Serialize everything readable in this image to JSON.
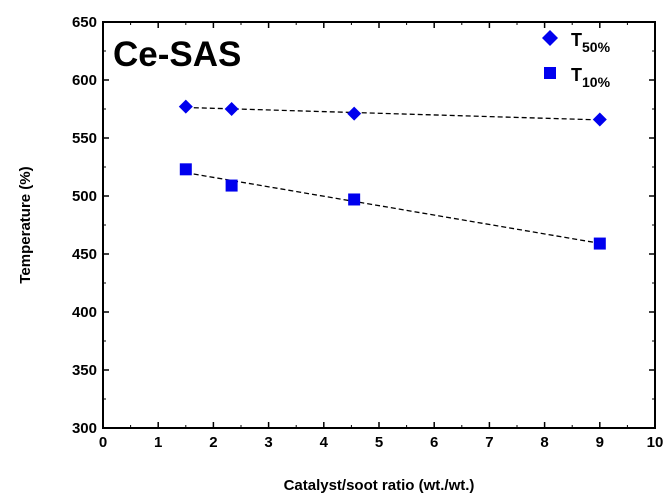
{
  "chart_data": {
    "type": "scatter",
    "title": "",
    "annotation": "Ce-SAS",
    "xlabel": "Catalyst/soot ratio (wt./wt.)",
    "ylabel": "Temperature (%)",
    "xlim": [
      0,
      10
    ],
    "ylim": [
      300,
      650
    ],
    "x_ticks": [
      "0",
      "1",
      "2",
      "3",
      "4",
      "5",
      "6",
      "7",
      "8",
      "9",
      "10"
    ],
    "y_ticks": [
      "300",
      "350",
      "400",
      "450",
      "500",
      "550",
      "600",
      "650"
    ],
    "grid": false,
    "legend_position": "top-right",
    "series": [
      {
        "name": "T50%",
        "legend_main": "T",
        "legend_sub": "50%",
        "marker": "diamond",
        "color": "#0000ee",
        "trendline": "dashed",
        "x": [
          1.5,
          2.33,
          4.55,
          9.0
        ],
        "y": [
          577,
          575,
          571,
          566
        ]
      },
      {
        "name": "T10%",
        "legend_main": "T",
        "legend_sub": "10%",
        "marker": "square",
        "color": "#0000ee",
        "trendline": "dashed",
        "x": [
          1.5,
          2.33,
          4.55,
          9.0
        ],
        "y": [
          523,
          509,
          497,
          459
        ]
      }
    ]
  }
}
